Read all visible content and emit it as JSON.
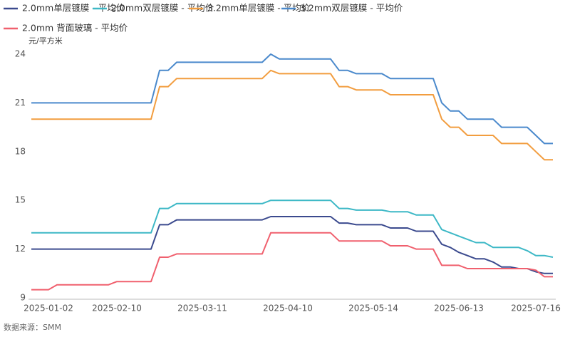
{
  "chart_data": {
    "type": "line",
    "y_label": "元/平方米",
    "source": "数据来源：SMM",
    "categories": [
      null,
      null,
      "2025-01-02",
      null,
      null,
      null,
      null,
      null,
      null,
      null,
      "2025-02-10",
      null,
      null,
      null,
      null,
      null,
      null,
      null,
      null,
      null,
      "2025-03-11",
      null,
      null,
      null,
      null,
      null,
      null,
      null,
      null,
      null,
      "2025-04-10",
      null,
      null,
      null,
      null,
      null,
      null,
      null,
      null,
      null,
      "2025-05-14",
      null,
      null,
      null,
      null,
      null,
      null,
      null,
      null,
      null,
      "2025-06-13",
      null,
      null,
      null,
      null,
      null,
      null,
      null,
      null,
      "2025-07-16",
      null,
      null
    ],
    "series": [
      {
        "name": "2.0mm单层镀膜 - 平均价",
        "color": "#3b4a8e",
        "values": [
          12,
          12,
          12,
          12,
          12,
          12,
          12,
          12,
          12,
          12,
          12,
          12,
          12,
          12,
          12,
          13.5,
          13.5,
          13.8,
          13.8,
          13.8,
          13.8,
          13.8,
          13.8,
          13.8,
          13.8,
          13.8,
          13.8,
          13.8,
          14,
          14,
          14,
          14,
          14,
          14,
          14,
          14,
          13.6,
          13.6,
          13.5,
          13.5,
          13.5,
          13.5,
          13.3,
          13.3,
          13.3,
          13.1,
          13.1,
          13.1,
          12.3,
          12.1,
          11.8,
          11.6,
          11.4,
          11.4,
          11.2,
          10.9,
          10.9,
          10.8,
          10.8,
          10.6,
          10.5,
          10.5
        ]
      },
      {
        "name": "2.0mm双层镀膜 - 平均价",
        "color": "#3db8c6",
        "values": [
          13,
          13,
          13,
          13,
          13,
          13,
          13,
          13,
          13,
          13,
          13,
          13,
          13,
          13,
          13,
          14.5,
          14.5,
          14.8,
          14.8,
          14.8,
          14.8,
          14.8,
          14.8,
          14.8,
          14.8,
          14.8,
          14.8,
          14.8,
          15,
          15,
          15,
          15,
          15,
          15,
          15,
          15,
          14.5,
          14.5,
          14.4,
          14.4,
          14.4,
          14.4,
          14.3,
          14.3,
          14.3,
          14.1,
          14.1,
          14.1,
          13.2,
          13,
          12.8,
          12.6,
          12.4,
          12.4,
          12.1,
          12.1,
          12.1,
          12.1,
          11.9,
          11.6,
          11.6,
          11.5
        ]
      },
      {
        "name": "3.2mm单层镀膜 - 平均价",
        "color": "#f29d3f",
        "values": [
          20,
          20,
          20,
          20,
          20,
          20,
          20,
          20,
          20,
          20,
          20,
          20,
          20,
          20,
          20,
          22,
          22,
          22.5,
          22.5,
          22.5,
          22.5,
          22.5,
          22.5,
          22.5,
          22.5,
          22.5,
          22.5,
          22.5,
          23,
          22.8,
          22.8,
          22.8,
          22.8,
          22.8,
          22.8,
          22.8,
          22,
          22,
          21.8,
          21.8,
          21.8,
          21.8,
          21.5,
          21.5,
          21.5,
          21.5,
          21.5,
          21.5,
          20,
          19.5,
          19.5,
          19,
          19,
          19,
          19,
          18.5,
          18.5,
          18.5,
          18.5,
          18,
          17.5,
          17.5
        ]
      },
      {
        "name": "3.2mm双层镀膜 - 平均价",
        "color": "#4a89cc",
        "values": [
          21,
          21,
          21,
          21,
          21,
          21,
          21,
          21,
          21,
          21,
          21,
          21,
          21,
          21,
          21,
          23,
          23,
          23.5,
          23.5,
          23.5,
          23.5,
          23.5,
          23.5,
          23.5,
          23.5,
          23.5,
          23.5,
          23.5,
          24,
          23.7,
          23.7,
          23.7,
          23.7,
          23.7,
          23.7,
          23.7,
          23,
          23,
          22.8,
          22.8,
          22.8,
          22.8,
          22.5,
          22.5,
          22.5,
          22.5,
          22.5,
          22.5,
          21,
          20.5,
          20.5,
          20,
          20,
          20,
          20,
          19.5,
          19.5,
          19.5,
          19.5,
          19,
          18.5,
          18.5
        ]
      },
      {
        "name": "2.0mm 背面玻璃 - 平均价",
        "color": "#f0606e",
        "values": [
          9.5,
          9.5,
          9.5,
          9.8,
          9.8,
          9.8,
          9.8,
          9.8,
          9.8,
          9.8,
          10,
          10,
          10,
          10,
          10,
          11.5,
          11.5,
          11.7,
          11.7,
          11.7,
          11.7,
          11.7,
          11.7,
          11.7,
          11.7,
          11.7,
          11.7,
          11.7,
          13,
          13,
          13,
          13,
          13,
          13,
          13,
          13,
          12.5,
          12.5,
          12.5,
          12.5,
          12.5,
          12.5,
          12.2,
          12.2,
          12.2,
          12,
          12,
          12,
          11,
          11,
          11,
          10.8,
          10.8,
          10.8,
          10.8,
          10.8,
          10.8,
          10.8,
          10.8,
          10.7,
          10.3,
          10.3
        ]
      }
    ],
    "ylim": [
      9,
      24
    ],
    "yticks": [
      9,
      12,
      15,
      18,
      21,
      24
    ],
    "grid": false
  }
}
